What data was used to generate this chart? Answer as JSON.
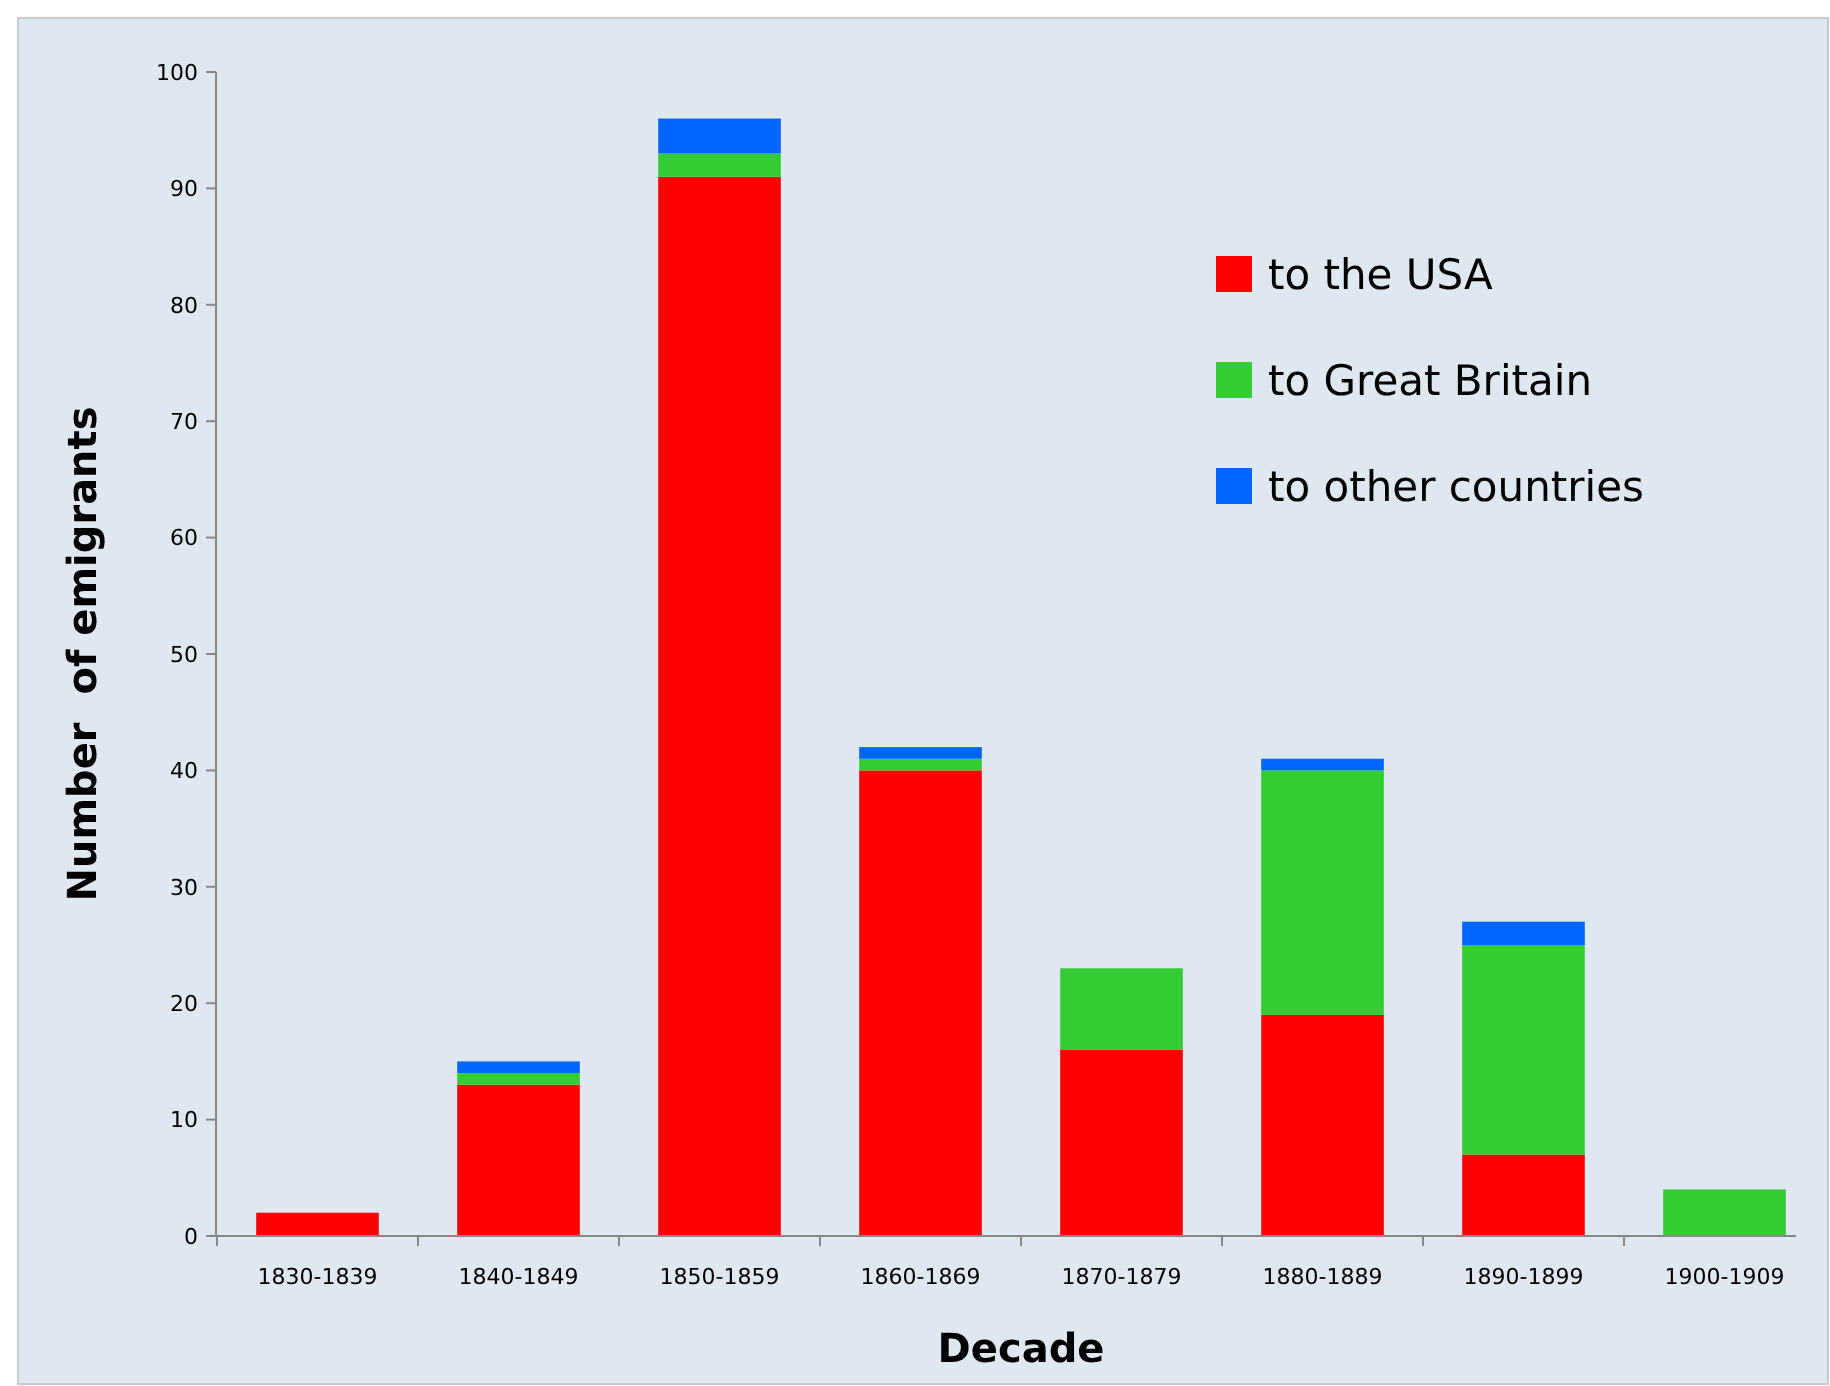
{
  "chart_data": {
    "type": "bar",
    "stacked": true,
    "xlabel": "Decade",
    "ylabel": "Number  of emigrants",
    "categories": [
      "1830-1839",
      "1840-1849",
      "1850-1859",
      "1860-1869",
      "1870-1879",
      "1880-1889",
      "1890-1899",
      "1900-1909"
    ],
    "series": [
      {
        "name": "to the USA",
        "color": "#ff0000",
        "values": [
          2,
          13,
          91,
          40,
          16,
          19,
          7,
          0
        ]
      },
      {
        "name": "to Great Britain",
        "color": "#33cc33",
        "values": [
          0,
          1,
          2,
          1,
          7,
          21,
          18,
          4
        ]
      },
      {
        "name": "to other countries",
        "color": "#0066ff",
        "values": [
          0,
          1,
          3,
          1,
          0,
          1,
          2,
          0
        ]
      }
    ],
    "ylim": [
      0,
      100
    ],
    "yticks": [
      0,
      10,
      20,
      30,
      40,
      50,
      60,
      70,
      80,
      90,
      100
    ],
    "grid": false,
    "legend": "top right"
  }
}
